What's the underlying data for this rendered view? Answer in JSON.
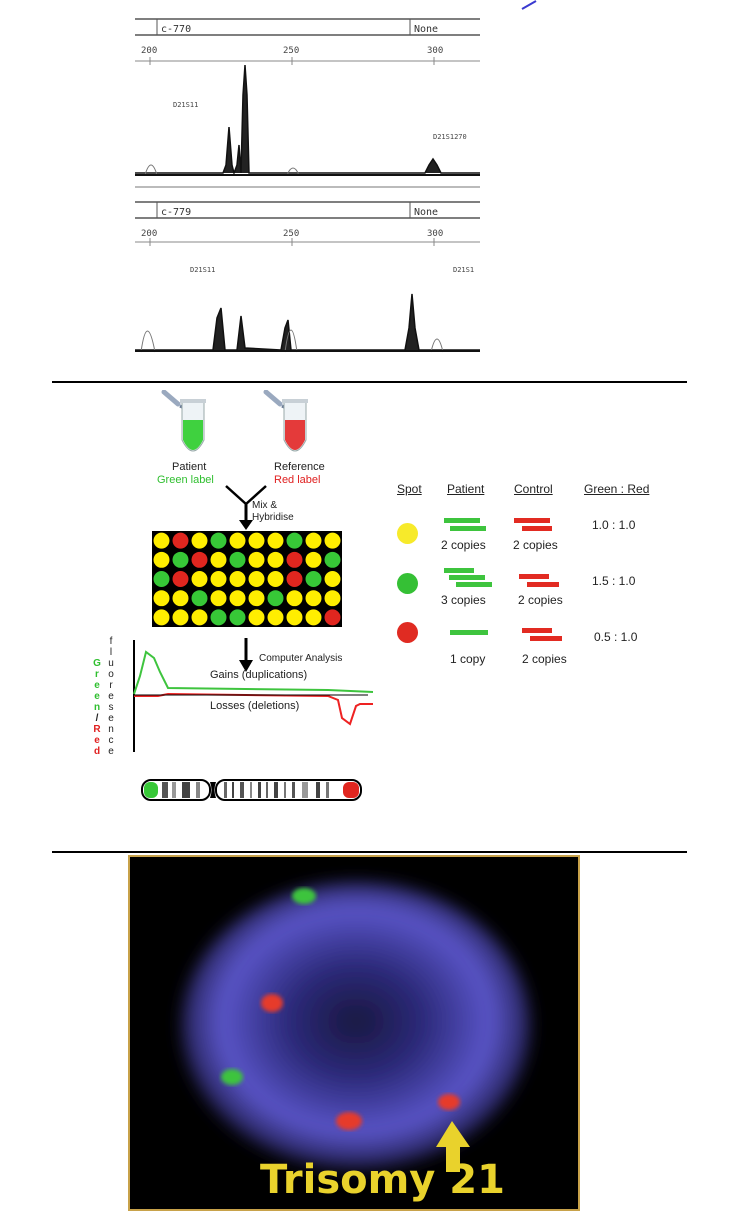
{
  "electropherogram": {
    "panels": [
      {
        "sample_id": "c-770",
        "status": "None",
        "axis_ticks": [
          "200",
          "250",
          "300"
        ],
        "markers": [
          "D21S11",
          "D21S1270"
        ]
      },
      {
        "sample_id": "c-779",
        "status": "None",
        "axis_ticks": [
          "200",
          "250",
          "300"
        ],
        "markers": [
          "D21S11",
          "D21S1"
        ]
      }
    ]
  },
  "cgh": {
    "tubes": [
      {
        "title": "Patient",
        "label": "Green label",
        "label_color": "#2fbf2f",
        "fill": "#3fd13f"
      },
      {
        "title": "Reference",
        "label": "Red label",
        "label_color": "#e02020",
        "fill": "#e43a3a"
      }
    ],
    "mix_label_line1": "Mix &",
    "mix_label_line2": "Hybridise",
    "analysis_label": "Computer Analysis",
    "gains_label": "Gains (duplications)",
    "losses_label": "Losses (deletions)",
    "yaxis_letters_left": [
      {
        "ch": "G",
        "c": "green"
      },
      {
        "ch": "r",
        "c": "green"
      },
      {
        "ch": "e",
        "c": "green"
      },
      {
        "ch": "e",
        "c": "green"
      },
      {
        "ch": "n",
        "c": "green"
      },
      {
        "ch": "/",
        "c": "black"
      },
      {
        "ch": "R",
        "c": "red"
      },
      {
        "ch": "e",
        "c": "red"
      },
      {
        "ch": "d",
        "c": "red"
      }
    ],
    "yaxis_letters_right": [
      "f",
      "l",
      "u",
      "o",
      "r",
      "e",
      "s",
      "e",
      "n",
      "c",
      "e"
    ],
    "microarray_rows": [
      [
        "Y",
        "R",
        "Y",
        "G",
        "Y",
        "Y",
        "Y",
        "G",
        "Y",
        "Y"
      ],
      [
        "Y",
        "G",
        "R",
        "Y",
        "G",
        "Y",
        "Y",
        "R",
        "Y",
        "G"
      ],
      [
        "G",
        "R",
        "Y",
        "Y",
        "Y",
        "Y",
        "Y",
        "R",
        "G",
        "Y"
      ],
      [
        "Y",
        "Y",
        "G",
        "Y",
        "Y",
        "Y",
        "G",
        "Y",
        "Y",
        "Y"
      ],
      [
        "Y",
        "Y",
        "Y",
        "G",
        "G",
        "Y",
        "Y",
        "Y",
        "Y",
        "R"
      ]
    ],
    "spot_colors": {
      "Y": "#ffee00",
      "G": "#37c837",
      "R": "#e0261f"
    },
    "table_headers": [
      "Spot",
      "Patient",
      "Control",
      "Green : Red"
    ],
    "table_rows": [
      {
        "spot_color": "#f7ea2a",
        "patient": "2 copies",
        "control": "2 copies",
        "ratio": "1.0 : 1.0",
        "patient_bars": 2,
        "control_bars": 2
      },
      {
        "spot_color": "#35c035",
        "patient": "3 copies",
        "control": "2 copies",
        "ratio": "1.5 : 1.0",
        "patient_bars": 3,
        "control_bars": 2
      },
      {
        "spot_color": "#e02b22",
        "patient": "1 copy",
        "control": "2 copies",
        "ratio": "0.5 : 1.0",
        "patient_bars": 1,
        "control_bars": 2
      }
    ]
  },
  "fish": {
    "caption": "Trisomy 21",
    "colors": {
      "nucleus": "#5a55c8",
      "green_signal": "#3ec43e",
      "red_signal": "#e63a2a",
      "arrow": "#e9d22c",
      "caption": "#e9d22c",
      "border": "#c8a24a"
    }
  }
}
